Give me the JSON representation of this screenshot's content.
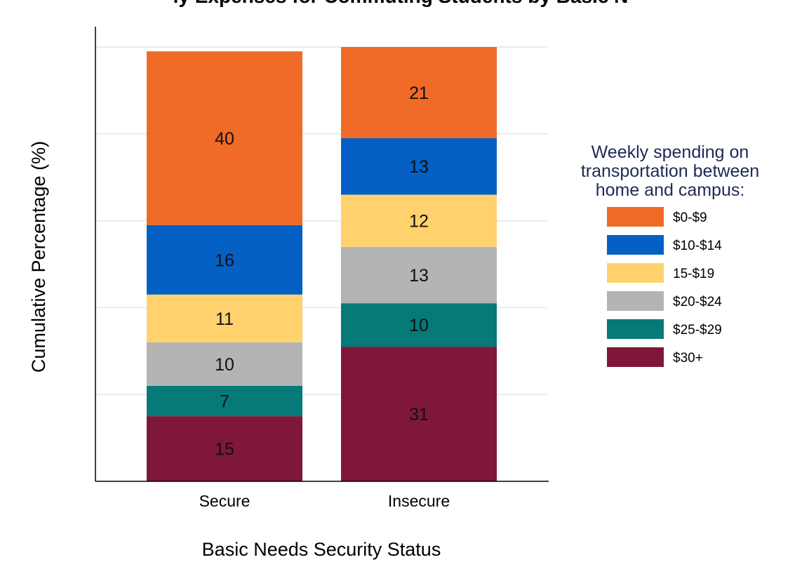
{
  "chart_data": {
    "type": "bar",
    "stacked": true,
    "title": "ly Expenses for Commuting Students by Basic N",
    "xlabel": "Basic Needs Security Status",
    "ylabel": "Cumulative Percentage (%)",
    "ylim": [
      0,
      100
    ],
    "grid": true,
    "legend_position": "right",
    "categories": [
      "Secure",
      "Insecure"
    ],
    "legend_title": [
      "Weekly spending on",
      "transportation between",
      "home and campus:"
    ],
    "series": [
      {
        "name": "$30+",
        "color": "#7f1838",
        "values": [
          15,
          31
        ]
      },
      {
        "name": "$25-$29",
        "color": "#057a78",
        "values": [
          7,
          10
        ]
      },
      {
        "name": "$20-$24",
        "color": "#b4b4b4",
        "values": [
          10,
          13
        ]
      },
      {
        "name": "15-$19",
        "color": "#ffd26e",
        "values": [
          11,
          12
        ]
      },
      {
        "name": "$10-$14",
        "color": "#0460c4",
        "values": [
          16,
          13
        ]
      },
      {
        "name": "$0-$9",
        "color": "#f06a28",
        "values": [
          40,
          21
        ]
      }
    ],
    "legend_order": [
      "$0-$9",
      "$10-$14",
      "15-$19",
      "$20-$24",
      "$25-$29",
      "$30+"
    ]
  }
}
